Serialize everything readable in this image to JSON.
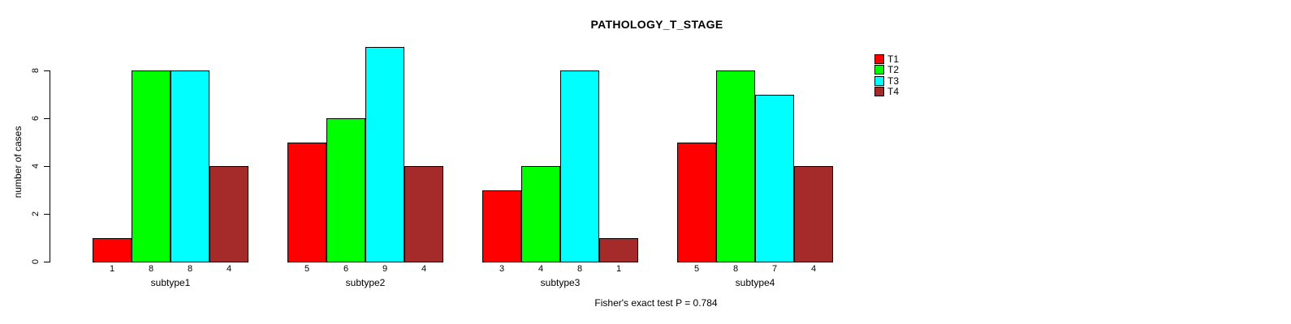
{
  "chart_data": {
    "type": "bar",
    "title": "PATHOLOGY_T_STAGE",
    "ylabel": "number of cases",
    "xlabel": "",
    "footer": "Fisher's exact test P = 0.784",
    "categories": [
      "subtype1",
      "subtype2",
      "subtype3",
      "subtype4"
    ],
    "series": [
      {
        "name": "T1",
        "color": "#ff0000",
        "values": [
          1,
          5,
          3,
          5
        ]
      },
      {
        "name": "T2",
        "color": "#00ff00",
        "values": [
          8,
          6,
          4,
          8
        ]
      },
      {
        "name": "T3",
        "color": "#00ffff",
        "values": [
          8,
          9,
          8,
          7
        ]
      },
      {
        "name": "T4",
        "color": "#a52a2a",
        "values": [
          4,
          4,
          1,
          4
        ]
      }
    ],
    "bar_value_labels": [
      [
        1,
        8,
        8,
        4
      ],
      [
        5,
        6,
        9,
        4
      ],
      [
        3,
        4,
        8,
        1
      ],
      [
        5,
        8,
        7,
        4
      ]
    ],
    "y_ticks": [
      0,
      2,
      4,
      6,
      8
    ],
    "ylim": [
      0,
      9
    ],
    "grid": false,
    "legend_position": "top-right",
    "colors": {
      "axis": "#000000",
      "text": "#000000",
      "background": "#ffffff",
      "bar_border": "#000000"
    }
  }
}
